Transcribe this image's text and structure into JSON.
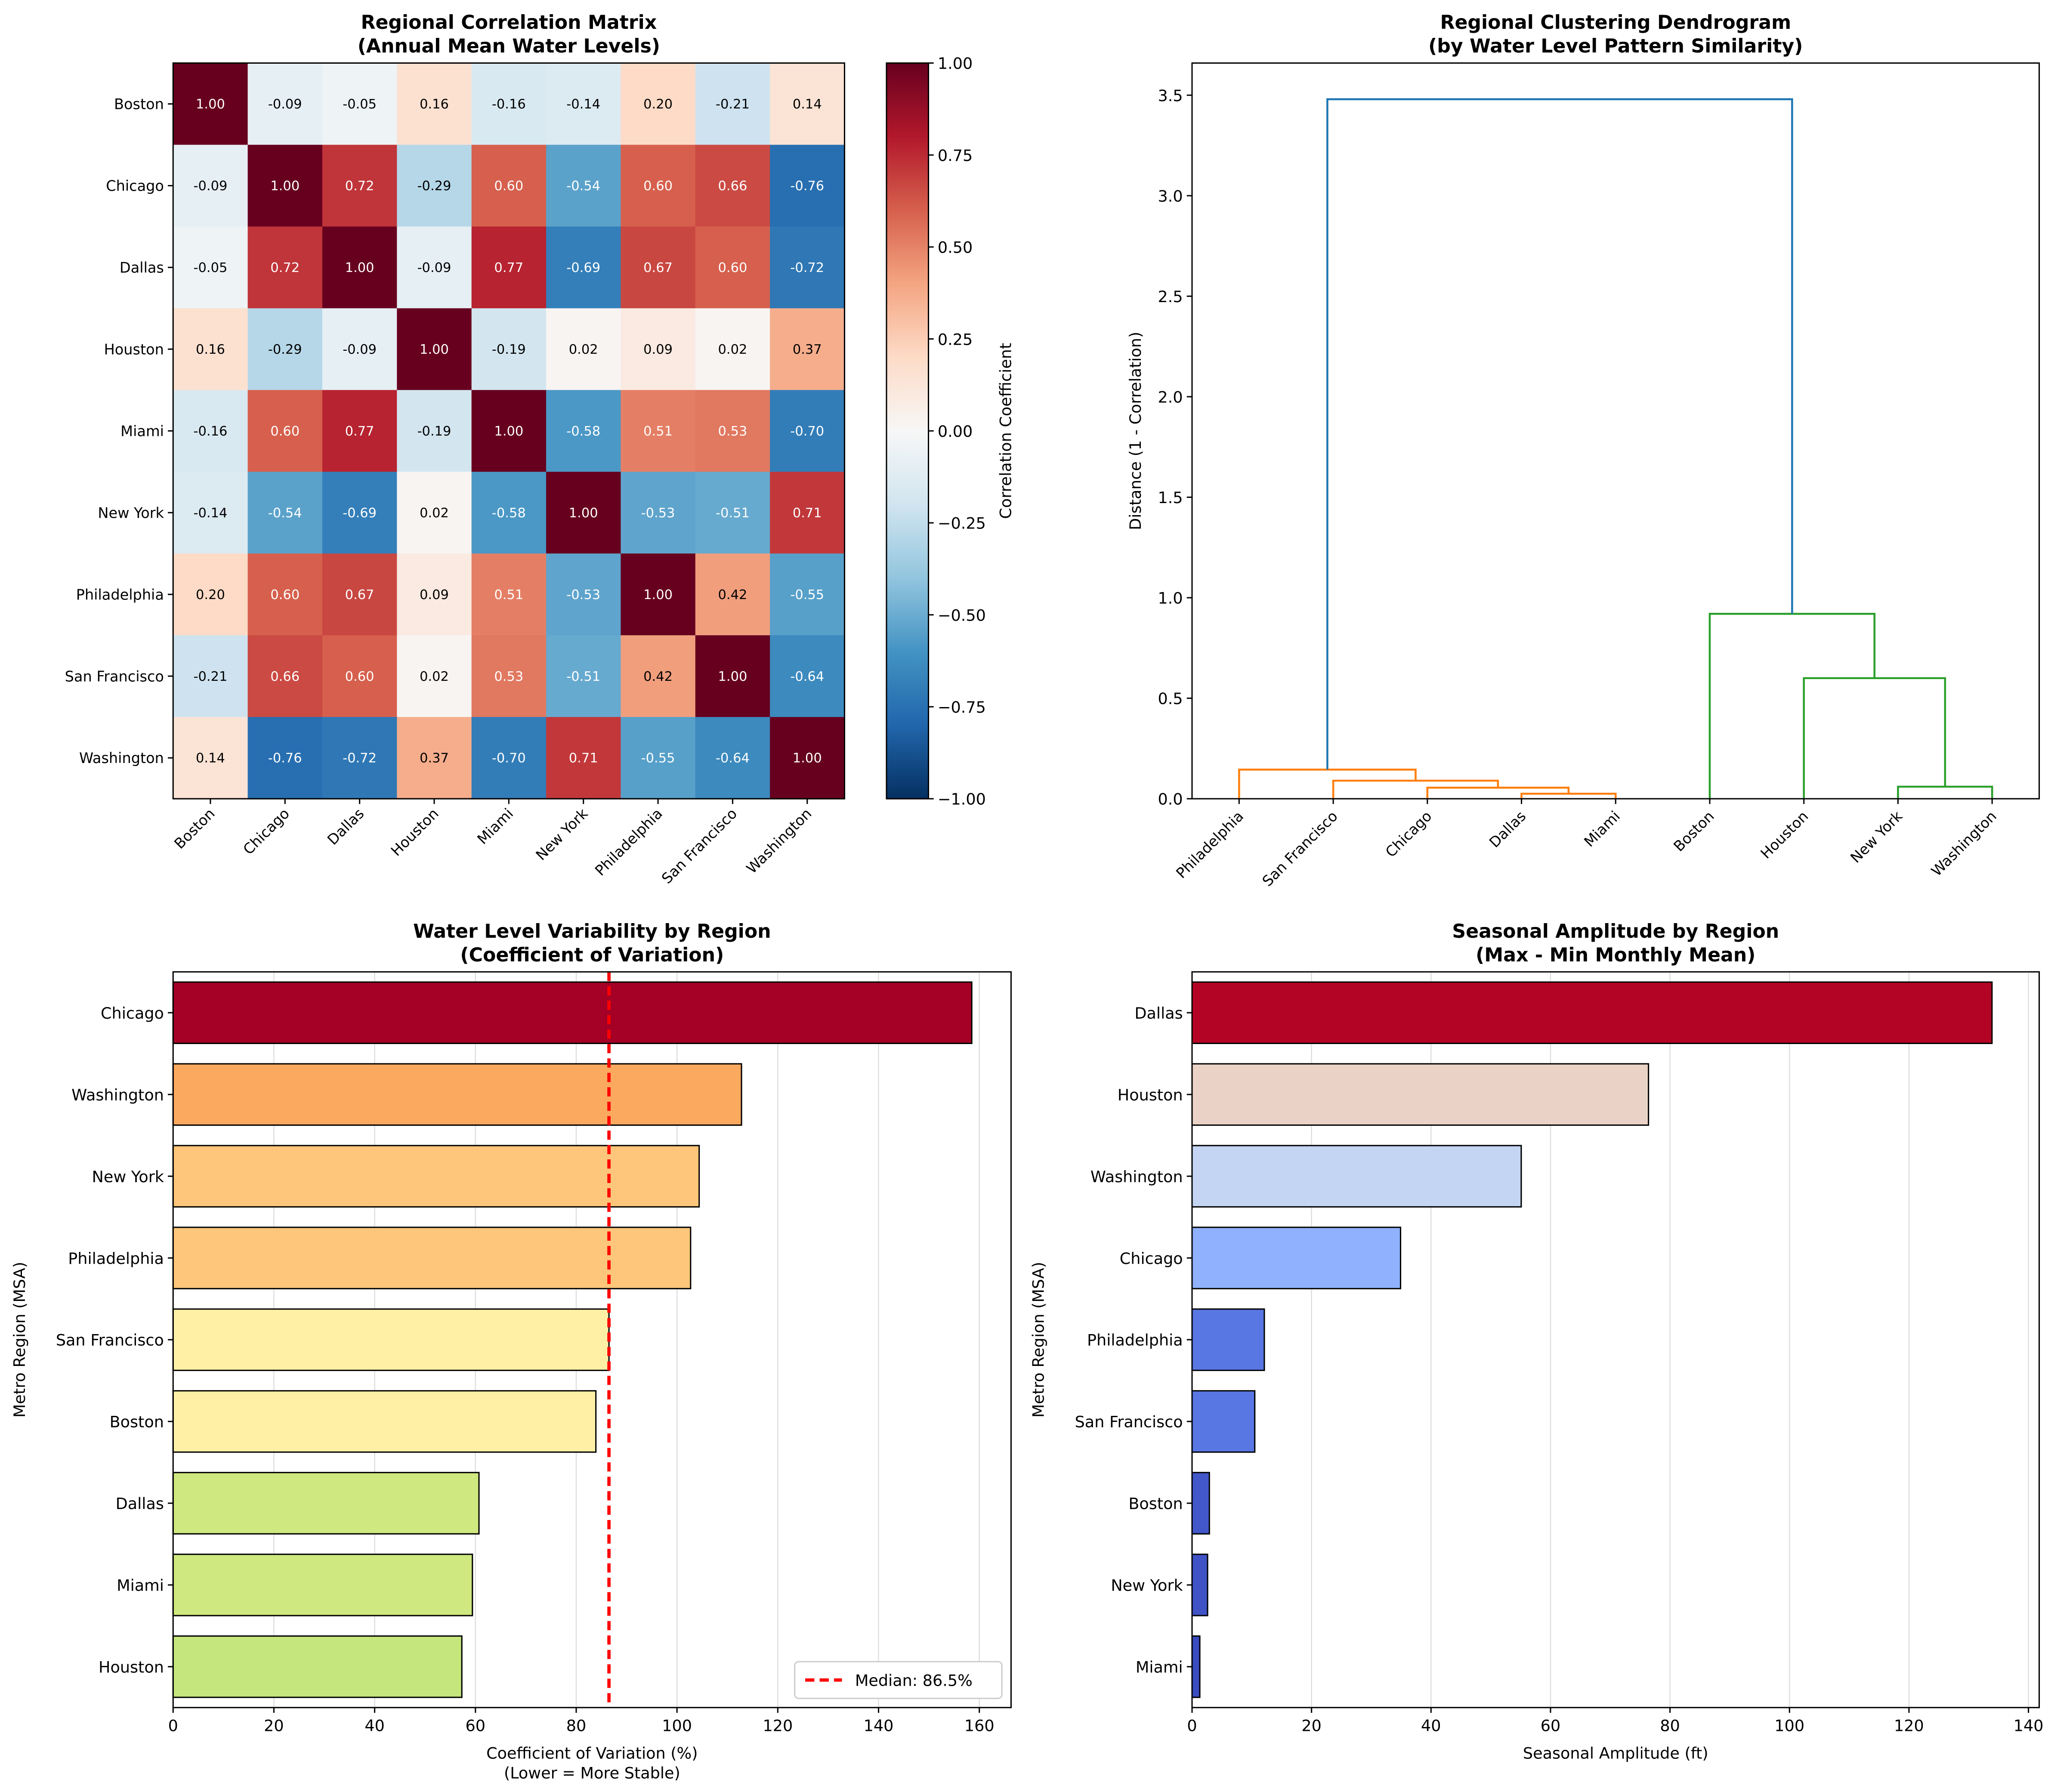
{
  "chart_data": [
    {
      "type": "heatmap",
      "title": [
        "Regional Correlation Matrix",
        "(Annual Mean Water Levels)"
      ],
      "categories": [
        "Boston",
        "Chicago",
        "Dallas",
        "Houston",
        "Miami",
        "New York",
        "Philadelphia",
        "San Francisco",
        "Washington"
      ],
      "values": [
        [
          1.0,
          -0.09,
          -0.05,
          0.16,
          -0.16,
          -0.14,
          0.2,
          -0.21,
          0.14
        ],
        [
          -0.09,
          1.0,
          0.72,
          -0.29,
          0.6,
          -0.54,
          0.6,
          0.66,
          -0.76
        ],
        [
          -0.05,
          0.72,
          1.0,
          -0.09,
          0.77,
          -0.69,
          0.67,
          0.6,
          -0.72
        ],
        [
          0.16,
          -0.29,
          -0.09,
          1.0,
          -0.19,
          0.02,
          0.09,
          0.02,
          0.37
        ],
        [
          -0.16,
          0.6,
          0.77,
          -0.19,
          1.0,
          -0.58,
          0.51,
          0.53,
          -0.7
        ],
        [
          -0.14,
          -0.54,
          -0.69,
          0.02,
          -0.58,
          1.0,
          -0.53,
          -0.51,
          0.71
        ],
        [
          0.2,
          0.6,
          0.67,
          0.09,
          0.51,
          -0.53,
          1.0,
          0.42,
          -0.55
        ],
        [
          -0.21,
          0.66,
          0.6,
          0.02,
          0.53,
          -0.51,
          0.42,
          1.0,
          -0.64
        ],
        [
          0.14,
          -0.76,
          -0.72,
          0.37,
          -0.7,
          0.71,
          -0.55,
          -0.64,
          1.0
        ]
      ],
      "value_labels": [
        [
          "1.00",
          "-0.09",
          "-0.05",
          "0.16",
          "-0.16",
          "-0.14",
          "0.20",
          "-0.21",
          "0.14"
        ],
        [
          "-0.09",
          "1.00",
          "0.72",
          "-0.29",
          "0.60",
          "-0.54",
          "0.60",
          "0.66",
          "-0.76"
        ],
        [
          "-0.05",
          "0.72",
          "1.00",
          "-0.09",
          "0.77",
          "-0.69",
          "0.67",
          "0.60",
          "-0.72"
        ],
        [
          "0.16",
          "-0.29",
          "-0.09",
          "1.00",
          "-0.19",
          "0.02",
          "0.09",
          "0.02",
          "0.37"
        ],
        [
          "-0.16",
          "0.60",
          "0.77",
          "-0.19",
          "1.00",
          "-0.58",
          "0.51",
          "0.53",
          "-0.70"
        ],
        [
          "-0.14",
          "-0.54",
          "-0.69",
          "0.02",
          "-0.58",
          "1.00",
          "-0.53",
          "-0.51",
          "0.71"
        ],
        [
          "0.20",
          "0.60",
          "0.67",
          "0.09",
          "0.51",
          "-0.53",
          "1.00",
          "0.42",
          "-0.55"
        ],
        [
          "-0.21",
          "0.66",
          "0.60",
          "0.02",
          "0.53",
          "-0.51",
          "0.42",
          "1.00",
          "-0.64"
        ],
        [
          "0.14",
          "-0.76",
          "-0.72",
          "0.37",
          "-0.70",
          "0.71",
          "-0.55",
          "-0.64",
          "1.00"
        ]
      ],
      "colormap": "RdBu_r",
      "clim": [
        -1,
        1
      ],
      "colorbar_label": "Correlation Coefficient",
      "colorbar_ticks": [
        {
          "value": -1,
          "label": "−1.00"
        },
        {
          "value": -0.75,
          "label": "−0.75"
        },
        {
          "value": -0.5,
          "label": "−0.50"
        },
        {
          "value": -0.25,
          "label": "−0.25"
        },
        {
          "value": 0,
          "label": "0.00"
        },
        {
          "value": 0.25,
          "label": "0.25"
        },
        {
          "value": 0.5,
          "label": "0.50"
        },
        {
          "value": 0.75,
          "label": "0.75"
        },
        {
          "value": 1,
          "label": "1.00"
        }
      ]
    },
    {
      "type": "dendrogram",
      "title": [
        "Regional Clustering Dendrogram",
        "(by Water Level Pattern Similarity)"
      ],
      "leaves": [
        "Philadelphia",
        "San Francisco",
        "Chicago",
        "Dallas",
        "Miami",
        "Boston",
        "Houston",
        "New York",
        "Washington"
      ],
      "merges": [
        {
          "children": [
            3,
            4
          ],
          "height": 0.025,
          "color": "#ff7f0e"
        },
        {
          "children": [
            2,
            9
          ],
          "height": 0.055,
          "color": "#ff7f0e"
        },
        {
          "children": [
            1,
            10
          ],
          "height": 0.09,
          "color": "#ff7f0e"
        },
        {
          "children": [
            0,
            11
          ],
          "height": 0.145,
          "color": "#ff7f0e"
        },
        {
          "children": [
            7,
            8
          ],
          "height": 0.06,
          "color": "#2ca02c"
        },
        {
          "children": [
            6,
            13
          ],
          "height": 0.6,
          "color": "#2ca02c"
        },
        {
          "children": [
            5,
            14
          ],
          "height": 0.92,
          "color": "#2ca02c"
        },
        {
          "children": [
            12,
            15
          ],
          "height": 3.48,
          "color": "#1f77b4"
        }
      ],
      "ylabel": "Distance (1 - Correlation)",
      "ylim": [
        0,
        3.66
      ],
      "yticks": [
        {
          "value": 0,
          "label": "0.0"
        },
        0.5,
        {
          "value": 1,
          "label": "1.0"
        },
        1.5,
        {
          "value": 2,
          "label": "2.0"
        },
        2.5,
        {
          "value": 3,
          "label": "3.0"
        },
        3.5
      ]
    },
    {
      "type": "barh",
      "title": [
        "Water Level Variability by Region",
        "(Coefficient of Variation)"
      ],
      "categories": [
        "Chicago",
        "Washington",
        "New York",
        "Philadelphia",
        "San Francisco",
        "Boston",
        "Dallas",
        "Miami",
        "Houston"
      ],
      "values": [
        158.5,
        112.8,
        104.4,
        102.7,
        86.5,
        83.9,
        60.7,
        59.4,
        57.3
      ],
      "colors": [
        "#a50026",
        "#fba95f",
        "#fec67a",
        "#fec67a",
        "#fff0a6",
        "#fff0a6",
        "#cfe87f",
        "#cfe87f",
        "#c5e67c"
      ],
      "xlabel": [
        "Coefficient of Variation (%)",
        "(Lower = More Stable)"
      ],
      "ylabel": "Metro Region (MSA)",
      "xlim": [
        0,
        166.3
      ],
      "xticks": [
        0,
        20,
        40,
        60,
        80,
        100,
        120,
        140,
        160
      ],
      "grid": "x",
      "reference_line": {
        "value": 86.5,
        "label": "Median: 86.5%",
        "color": "#ff0000"
      },
      "legend": "lower right"
    },
    {
      "type": "barh",
      "title": [
        "Seasonal Amplitude by Region",
        "(Max - Min Monthly Mean)"
      ],
      "categories": [
        "Dallas",
        "Houston",
        "Washington",
        "Chicago",
        "Philadelphia",
        "San Francisco",
        "Boston",
        "New York",
        "Miami"
      ],
      "values": [
        133.9,
        76.4,
        55.1,
        34.9,
        12.1,
        10.5,
        2.9,
        2.6,
        1.3
      ],
      "colors": [
        "#b40426",
        "#ead3c6",
        "#c4d5f3",
        "#8fb1fe",
        "#5977e3",
        "#5977e3",
        "#4257c9",
        "#3f53c6",
        "#3b4cc0"
      ],
      "xlabel": [
        "Seasonal Amplitude (ft)"
      ],
      "ylabel": "Metro Region (MSA)",
      "xlim": [
        0,
        141.8
      ],
      "xticks": [
        0,
        20,
        40,
        60,
        80,
        100,
        120,
        140
      ],
      "grid": "x"
    }
  ]
}
